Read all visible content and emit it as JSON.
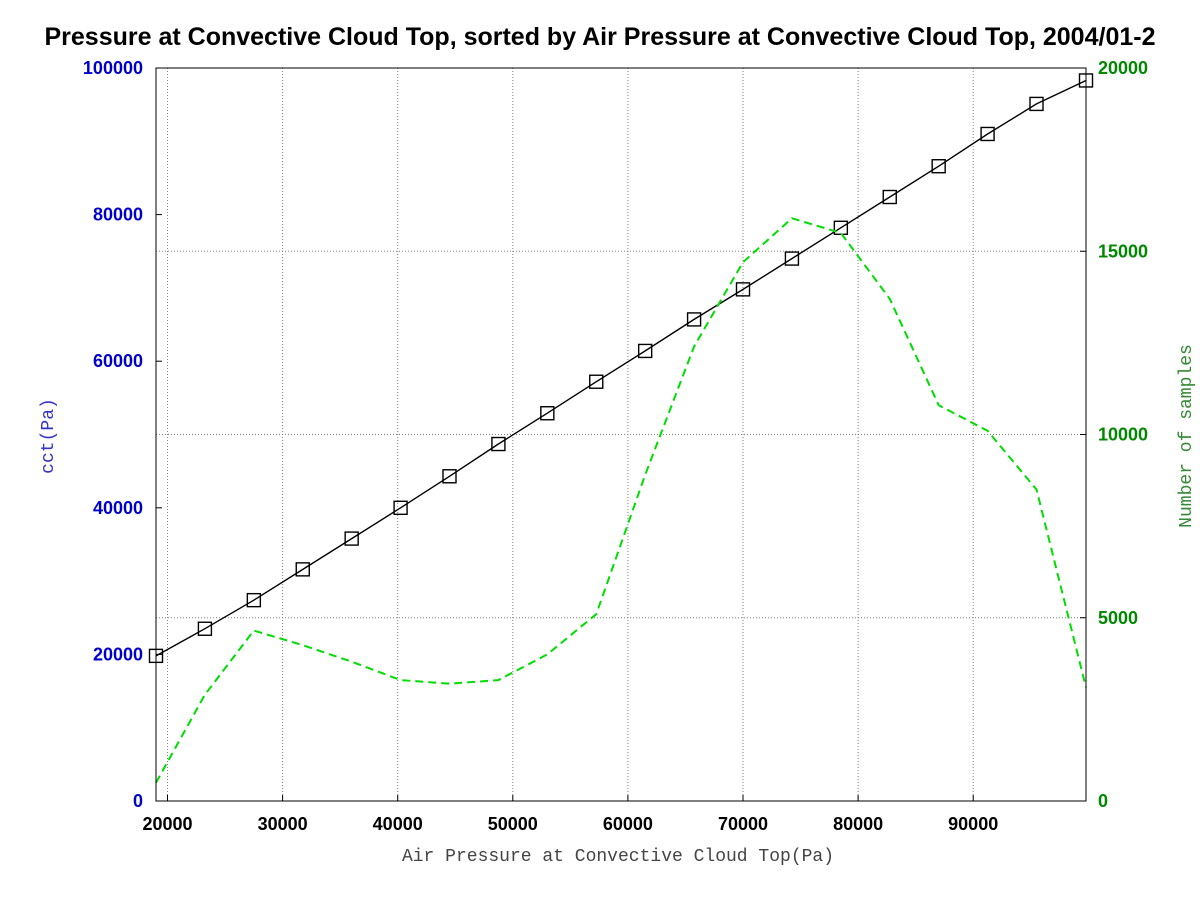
{
  "chart_data": {
    "type": "line",
    "title": "Pressure at Convective Cloud Top, sorted by Air Pressure at Convective Cloud Top, 2004/01-2",
    "xlabel": "Air Pressure at Convective Cloud Top(Pa)",
    "ylabel_left": "cct(Pa)",
    "ylabel_right": "Number of samples",
    "xlim": [
      19000,
      99800
    ],
    "ylim_left": [
      0,
      100000
    ],
    "ylim_right": [
      0,
      20000
    ],
    "x_ticks": [
      "20000",
      "30000",
      "40000",
      "50000",
      "60000",
      "70000",
      "80000",
      "90000"
    ],
    "x_tick_values": [
      20000,
      30000,
      40000,
      50000,
      60000,
      70000,
      80000,
      90000
    ],
    "y_left_ticks": [
      "0",
      "20000",
      "40000",
      "60000",
      "80000",
      "100000"
    ],
    "y_left_tick_values": [
      0,
      20000,
      40000,
      60000,
      80000,
      100000
    ],
    "y_right_ticks": [
      "0",
      "5000",
      "10000",
      "15000",
      "20000"
    ],
    "y_right_tick_values": [
      0,
      5000,
      10000,
      15000,
      20000
    ],
    "grid": true,
    "x": [
      19000,
      23250,
      27500,
      31750,
      36000,
      40250,
      44500,
      48750,
      53000,
      57250,
      61500,
      65750,
      70000,
      74250,
      78500,
      82750,
      87000,
      91250,
      95500,
      99800
    ],
    "series": [
      {
        "axis": "left",
        "color": "#000000",
        "line_style": "solid",
        "marker": "square",
        "values": [
          19800,
          23500,
          27400,
          31600,
          35800,
          40000,
          44300,
          48700,
          52900,
          57200,
          61400,
          65700,
          69800,
          74000,
          78200,
          82400,
          86600,
          91000,
          95100,
          98300
        ]
      },
      {
        "axis": "right",
        "color": "#00dd00",
        "line_style": "dashed",
        "marker": "none",
        "values": [
          500,
          2900,
          4650,
          4250,
          3800,
          3300,
          3200,
          3300,
          4000,
          5100,
          8900,
          12400,
          14700,
          15900,
          15500,
          13700,
          10800,
          10100,
          8500,
          3100
        ]
      }
    ]
  }
}
